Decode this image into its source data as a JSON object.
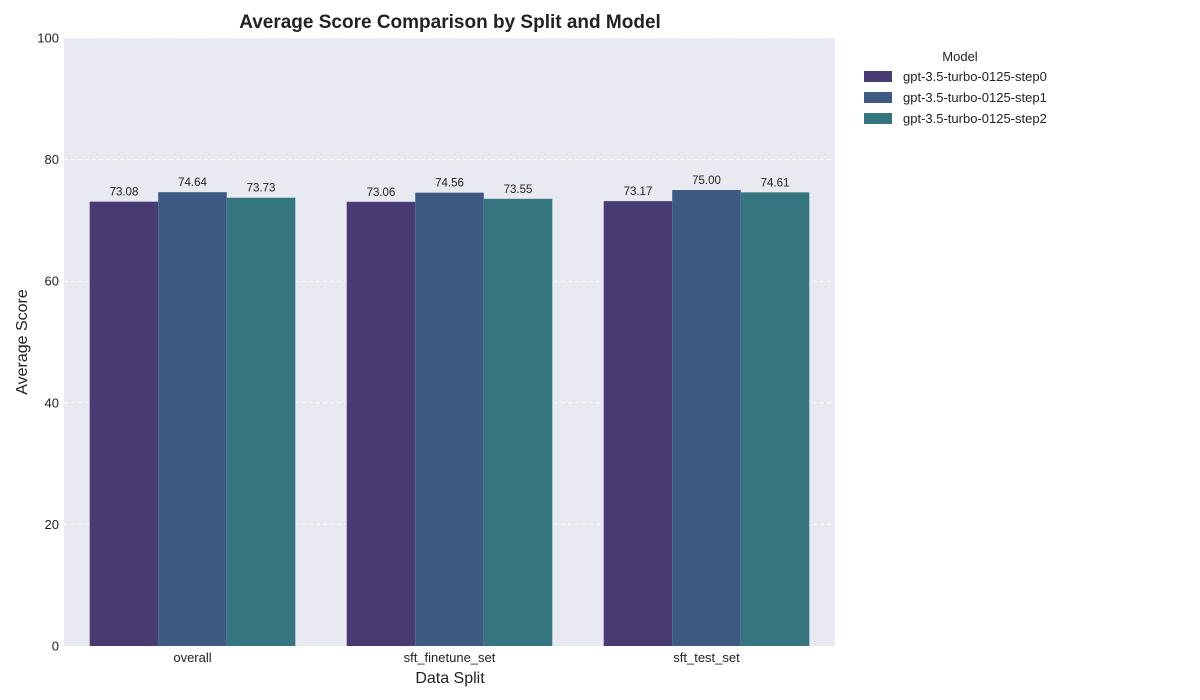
{
  "chart_data": {
    "type": "bar",
    "title": "Average Score Comparison by Split and Model",
    "xlabel": "Data Split",
    "ylabel": "Average Score",
    "categories": [
      "overall",
      "sft_finetune_set",
      "sft_test_set"
    ],
    "series": [
      {
        "name": "gpt-3.5-turbo-0125-step0",
        "values": [
          73.08,
          73.06,
          73.17
        ],
        "labels": [
          "73.08",
          "73.06",
          "73.17"
        ],
        "color": "#483a72"
      },
      {
        "name": "gpt-3.5-turbo-0125-step1",
        "values": [
          74.64,
          74.56,
          75.0
        ],
        "labels": [
          "74.64",
          "74.56",
          "75.00"
        ],
        "color": "#3e5a82"
      },
      {
        "name": "gpt-3.5-turbo-0125-step2",
        "values": [
          73.73,
          73.55,
          74.61
        ],
        "labels": [
          "73.73",
          "73.55",
          "74.61"
        ],
        "color": "#34757f"
      }
    ],
    "ylim": [
      0,
      100
    ],
    "yticks": [
      0,
      20,
      40,
      60,
      80,
      100
    ],
    "grid": true,
    "legend": {
      "title": "Model",
      "placement": "outside-top-right"
    },
    "plot_background": "#e9e9f1"
  }
}
